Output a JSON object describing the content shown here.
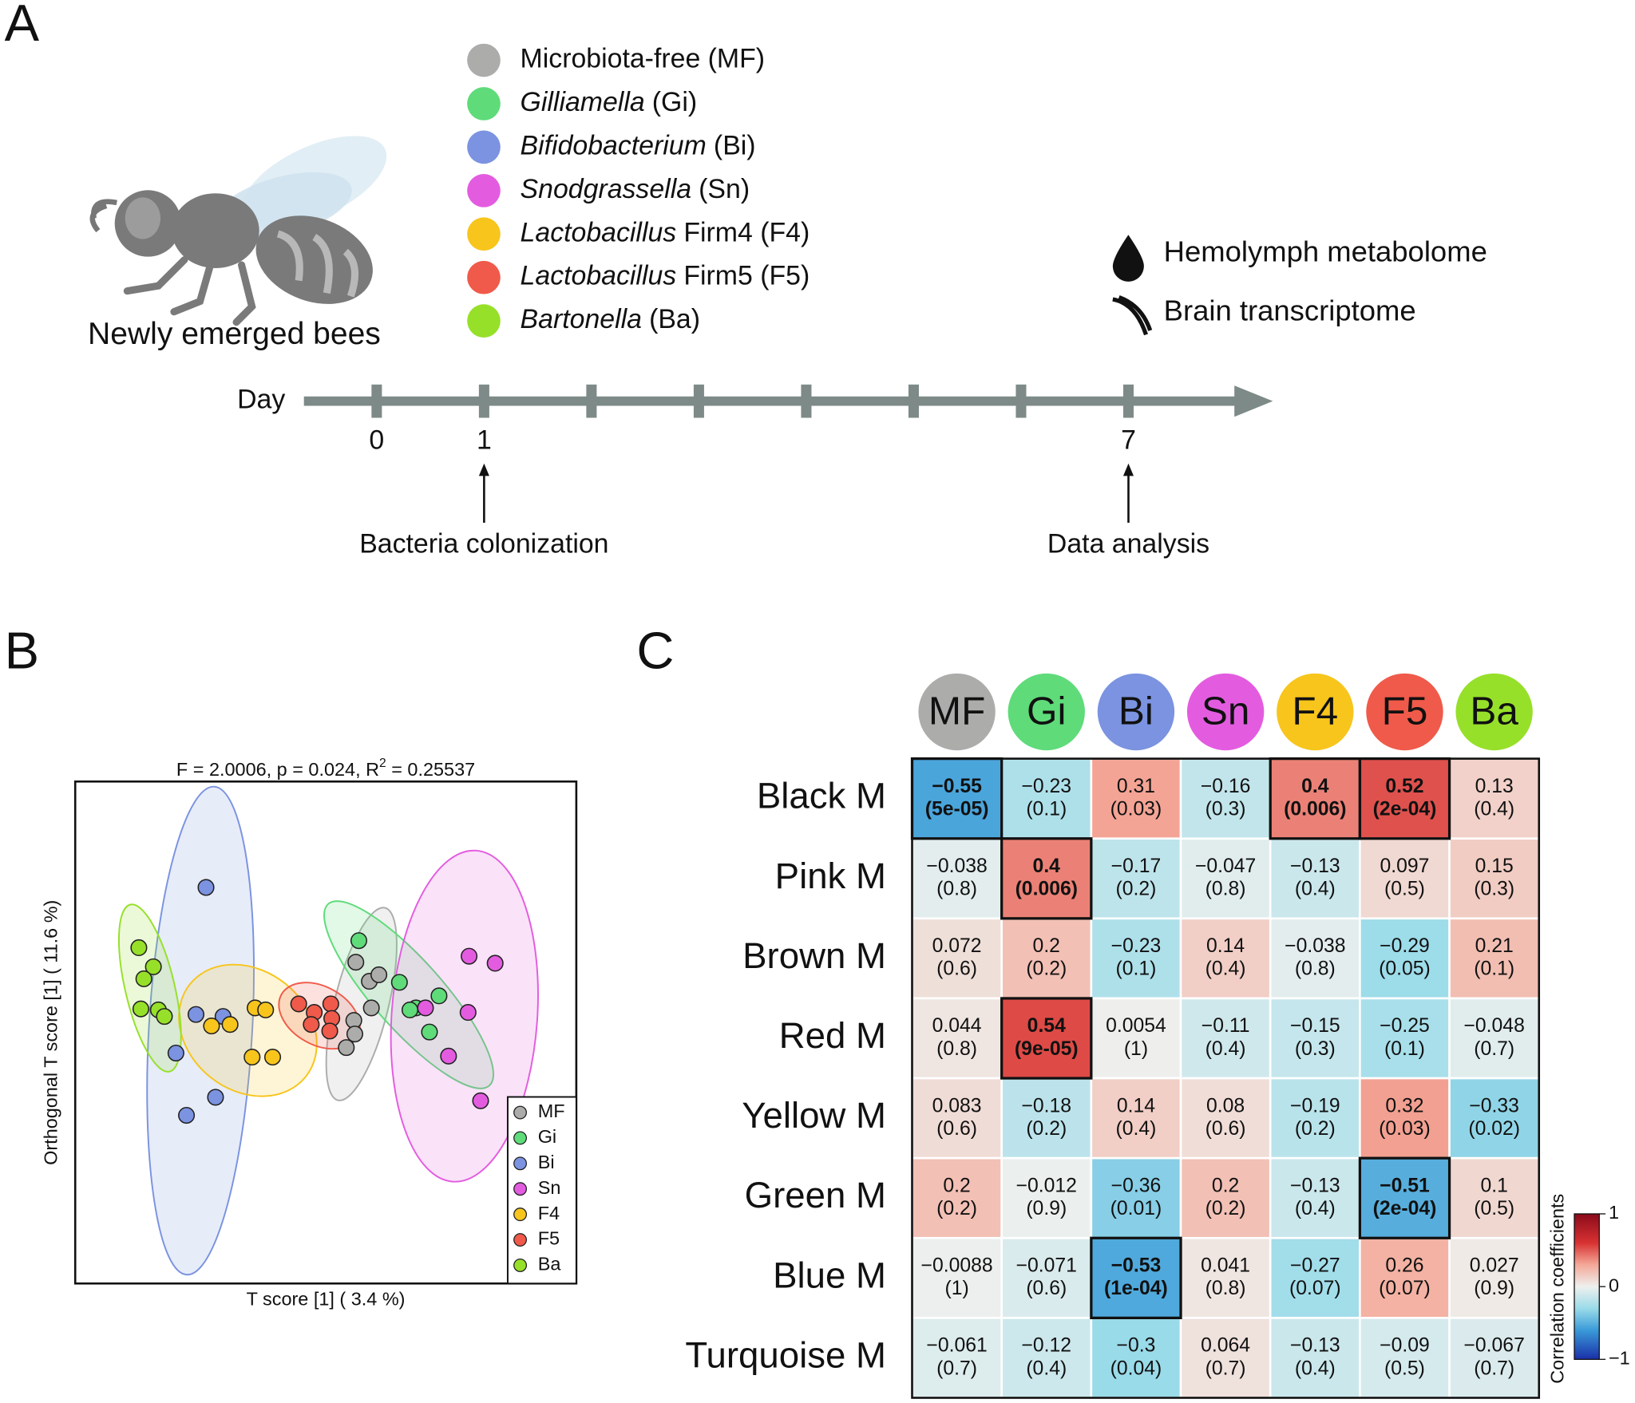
{
  "panel_a": {
    "label": "A",
    "legend": [
      {
        "color": "#acacaa",
        "parts": [
          {
            "text": "Microbiota-free (MF)",
            "italic": false
          }
        ]
      },
      {
        "color": "#5fdb7a",
        "parts": [
          {
            "text": "Gilliamella",
            "italic": true
          },
          {
            "text": "(Gi)",
            "italic": false
          }
        ]
      },
      {
        "color": "#7b93e0",
        "parts": [
          {
            "text": "Bifidobacterium",
            "italic": true
          },
          {
            "text": "(Bi)",
            "italic": false
          }
        ]
      },
      {
        "color": "#e35ce0",
        "parts": [
          {
            "text": "Snodgrassella",
            "italic": true
          },
          {
            "text": "(Sn)",
            "italic": false
          }
        ]
      },
      {
        "color": "#f7c51c",
        "parts": [
          {
            "text": "Lactobacillus",
            "italic": true
          },
          {
            "text": "Firm4 (F4)",
            "italic": false
          }
        ]
      },
      {
        "color": "#f05a4a",
        "parts": [
          {
            "text": "Lactobacillus",
            "italic": true
          },
          {
            "text": "Firm5 (F5)",
            "italic": false
          }
        ]
      },
      {
        "color": "#97e02a",
        "parts": [
          {
            "text": "Bartonella",
            "italic": true
          },
          {
            "text": "(Ba)",
            "italic": false
          }
        ]
      }
    ],
    "bee_label": "Newly emerged bees",
    "outputs": [
      "Hemolymph metabolome",
      "Brain transcriptome"
    ],
    "timeline": {
      "axis_label": "Day",
      "days": [
        0,
        1,
        2,
        3,
        4,
        5,
        6,
        7
      ],
      "labeled_days": [
        0,
        1,
        7
      ],
      "annotations": [
        {
          "text": "Bacteria colonization",
          "day": 1
        },
        {
          "text": "Data analysis",
          "day": 7
        }
      ]
    }
  },
  "chart_data": [
    {
      "type": "scatter",
      "panel_label": "B",
      "title": [
        "F = 2.0006, p = 0.024, R",
        "2",
        " = 0.25537"
      ],
      "x_label": "T score [1] ( 3.4 %)",
      "y_label": "Orthogonal T score [1] ( 11.6 %)",
      "xlim": [
        0,
        100
      ],
      "ylim": [
        0,
        100
      ],
      "legend": "bottom-right",
      "series": [
        {
          "name": "MF",
          "color": "#acacaa",
          "x": [
            56.0,
            58.7,
            60.6,
            59.1,
            55.6,
            55.8,
            54.1
          ],
          "y": [
            64.0,
            60.2,
            61.5,
            54.9,
            52.4,
            49.7,
            47.0
          ]
        },
        {
          "name": "Gi",
          "color": "#5fdb7a",
          "x": [
            56.6,
            64.7,
            68.0,
            66.8,
            72.6,
            70.7
          ],
          "y": [
            68.3,
            60.0,
            54.9,
            54.5,
            57.3,
            50.1
          ]
        },
        {
          "name": "Bi",
          "color": "#7b93e0",
          "x": [
            26.1,
            24.1,
            29.5,
            20.1,
            28.0,
            22.2
          ],
          "y": [
            78.9,
            53.6,
            53.2,
            45.9,
            37.1,
            33.5
          ]
        },
        {
          "name": "Sn",
          "color": "#e35ce0",
          "x": [
            78.6,
            83.8,
            69.9,
            78.4,
            74.5,
            80.9
          ],
          "y": [
            65.2,
            63.8,
            54.9,
            54.0,
            45.3,
            36.4
          ]
        },
        {
          "name": "F4",
          "color": "#f7c51c",
          "x": [
            27.2,
            30.9,
            35.9,
            38.0,
            35.3,
            39.4
          ],
          "y": [
            51.3,
            51.6,
            54.9,
            54.5,
            45.1,
            45.1
          ]
        },
        {
          "name": "F5",
          "color": "#f05a4a",
          "x": [
            44.6,
            47.7,
            51.0,
            51.2,
            47.1,
            50.8
          ],
          "y": [
            55.7,
            54.0,
            55.7,
            52.8,
            51.6,
            50.3
          ]
        },
        {
          "name": "Ba",
          "color": "#97e02a",
          "x": [
            12.7,
            15.6,
            13.7,
            13.1,
            16.6,
            17.8
          ],
          "y": [
            66.9,
            63.1,
            60.7,
            54.7,
            54.5,
            53.2
          ]
        }
      ]
    },
    {
      "type": "heatmap",
      "panel_label": "C",
      "columns": [
        {
          "name": "MF",
          "color": "#acacaa",
          "text_color": "#ffffff"
        },
        {
          "name": "Gi",
          "color": "#5fdb7a",
          "text_color": "#111111"
        },
        {
          "name": "Bi",
          "color": "#7b93e0",
          "text_color": "#111111"
        },
        {
          "name": "Sn",
          "color": "#e35ce0",
          "text_color": "#111111"
        },
        {
          "name": "F4",
          "color": "#f7c51c",
          "text_color": "#111111"
        },
        {
          "name": "F5",
          "color": "#f05a4a",
          "text_color": "#111111"
        },
        {
          "name": "Ba",
          "color": "#97e02a",
          "text_color": "#111111"
        }
      ],
      "rows": [
        "Black M",
        "Pink M",
        "Brown M",
        "Red M",
        "Yellow M",
        "Green M",
        "Blue M",
        "Turquoise M"
      ],
      "values": [
        [
          -0.55,
          -0.23,
          0.31,
          -0.16,
          0.4,
          0.52,
          0.13
        ],
        [
          -0.038,
          0.4,
          -0.17,
          -0.047,
          -0.13,
          0.097,
          0.15
        ],
        [
          0.072,
          0.2,
          -0.23,
          0.14,
          -0.038,
          -0.29,
          0.21
        ],
        [
          0.044,
          0.54,
          0.0054,
          -0.11,
          -0.15,
          -0.25,
          -0.048
        ],
        [
          0.083,
          -0.18,
          0.14,
          0.08,
          -0.19,
          0.32,
          -0.33
        ],
        [
          0.2,
          -0.012,
          -0.36,
          0.2,
          -0.13,
          -0.51,
          0.1
        ],
        [
          -0.0088,
          -0.071,
          -0.53,
          0.041,
          -0.27,
          0.26,
          0.027
        ],
        [
          -0.061,
          -0.12,
          -0.3,
          0.064,
          -0.13,
          -0.09,
          -0.067
        ]
      ],
      "value_labels": [
        [
          "−0.55",
          "−0.23",
          "0.31",
          "−0.16",
          "0.4",
          "0.52",
          "0.13"
        ],
        [
          "−0.038",
          "0.4",
          "−0.17",
          "−0.047",
          "−0.13",
          "0.097",
          "0.15"
        ],
        [
          "0.072",
          "0.2",
          "−0.23",
          "0.14",
          "−0.038",
          "−0.29",
          "0.21"
        ],
        [
          "0.044",
          "0.54",
          "0.0054",
          "−0.11",
          "−0.15",
          "−0.25",
          "−0.048"
        ],
        [
          "0.083",
          "−0.18",
          "0.14",
          "0.08",
          "−0.19",
          "0.32",
          "−0.33"
        ],
        [
          "0.2",
          "−0.012",
          "−0.36",
          "0.2",
          "−0.13",
          "−0.51",
          "0.1"
        ],
        [
          "−0.0088",
          "−0.071",
          "−0.53",
          "0.041",
          "−0.27",
          "0.26",
          "0.027"
        ],
        [
          "−0.061",
          "−0.12",
          "−0.3",
          "0.064",
          "−0.13",
          "−0.09",
          "−0.067"
        ]
      ],
      "p_values": [
        [
          5e-05,
          0.1,
          0.03,
          0.3,
          0.006,
          0.0002,
          0.4
        ],
        [
          0.8,
          0.006,
          0.2,
          0.8,
          0.4,
          0.5,
          0.3
        ],
        [
          0.6,
          0.2,
          0.1,
          0.4,
          0.8,
          0.05,
          0.1
        ],
        [
          0.8,
          9e-05,
          1,
          0.4,
          0.3,
          0.1,
          0.7
        ],
        [
          0.6,
          0.2,
          0.4,
          0.6,
          0.2,
          0.03,
          0.02
        ],
        [
          0.2,
          0.9,
          0.01,
          0.2,
          0.4,
          0.0002,
          0.5
        ],
        [
          1,
          0.6,
          0.0001,
          0.8,
          0.07,
          0.07,
          0.9
        ],
        [
          0.7,
          0.4,
          0.04,
          0.7,
          0.4,
          0.5,
          0.7
        ]
      ],
      "p_labels": [
        [
          "(5e-05)",
          "(0.1)",
          "(0.03)",
          "(0.3)",
          "(0.006)",
          "(2e-04)",
          "(0.4)"
        ],
        [
          "(0.8)",
          "(0.006)",
          "(0.2)",
          "(0.8)",
          "(0.4)",
          "(0.5)",
          "(0.3)"
        ],
        [
          "(0.6)",
          "(0.2)",
          "(0.1)",
          "(0.4)",
          "(0.8)",
          "(0.05)",
          "(0.1)"
        ],
        [
          "(0.8)",
          "(9e-05)",
          "(1)",
          "(0.4)",
          "(0.3)",
          "(0.1)",
          "(0.7)"
        ],
        [
          "(0.6)",
          "(0.2)",
          "(0.4)",
          "(0.6)",
          "(0.2)",
          "(0.03)",
          "(0.02)"
        ],
        [
          "(0.2)",
          "(0.9)",
          "(0.01)",
          "(0.2)",
          "(0.4)",
          "(2e-04)",
          "(0.5)"
        ],
        [
          "(1)",
          "(0.6)",
          "(1e-04)",
          "(0.8)",
          "(0.07)",
          "(0.07)",
          "(0.9)"
        ],
        [
          "(0.7)",
          "(0.4)",
          "(0.04)",
          "(0.7)",
          "(0.4)",
          "(0.5)",
          "(0.7)"
        ]
      ],
      "highlight_p_below": 0.01,
      "highlight_color": "#f7b924",
      "zlim": [
        -1,
        1
      ],
      "colormap": [
        [
          -1,
          "#1a2fa8"
        ],
        [
          -0.6,
          "#3a9ad8"
        ],
        [
          -0.3,
          "#9adbe9"
        ],
        [
          0,
          "#eef0ee"
        ],
        [
          0.3,
          "#f4a898"
        ],
        [
          0.6,
          "#d83232"
        ],
        [
          1,
          "#8b0a1a"
        ]
      ],
      "colorbar_label": "Correlation coefficients",
      "colorbar_ticks": [
        1,
        0,
        {
          "value": -1,
          "label": "−1"
        }
      ]
    }
  ]
}
